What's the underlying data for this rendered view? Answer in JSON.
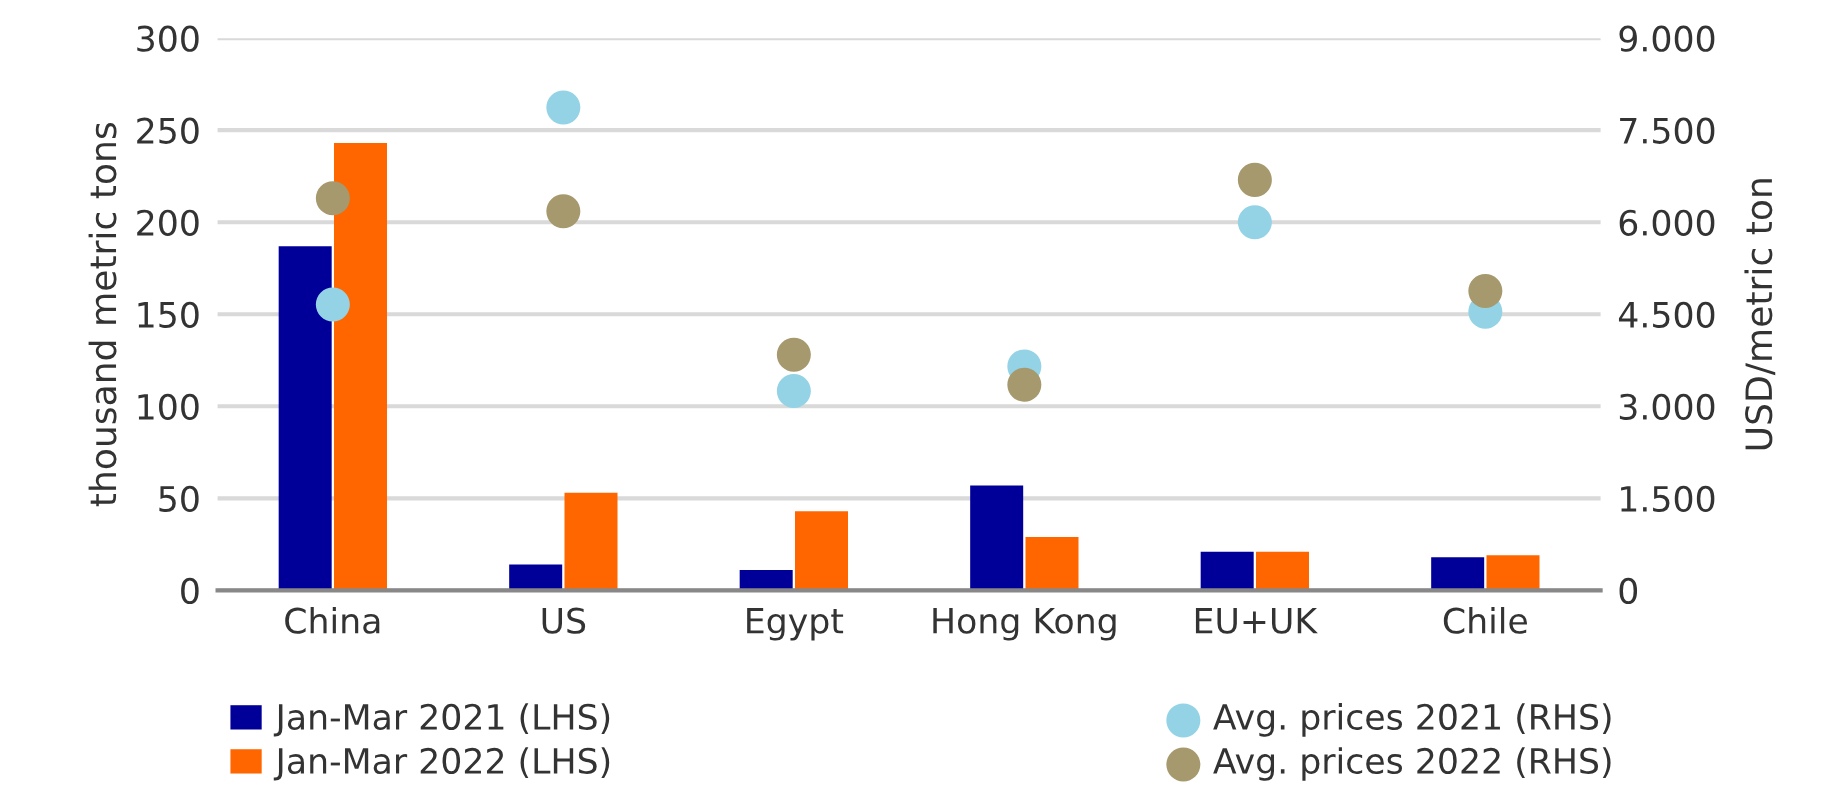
{
  "chart_data": {
    "type": "bar",
    "categories": [
      "China",
      "US",
      "Egypt",
      "Hong Kong",
      "EU+UK",
      "Chile"
    ],
    "ylabel": "thousand metric tons",
    "y2label": "USD/metric ton",
    "ylim": [
      0,
      300
    ],
    "yticks": [
      0,
      50,
      100,
      150,
      200,
      250,
      300
    ],
    "y2lim": [
      0,
      9000
    ],
    "y2ticks": [
      {
        "value": 0,
        "label": "0"
      },
      {
        "value": 1500,
        "label": "1.500"
      },
      {
        "value": 3000,
        "label": "3.000"
      },
      {
        "value": 4500,
        "label": "4.500"
      },
      {
        "value": 6000,
        "label": "6.000"
      },
      {
        "value": 7500,
        "label": "7.500"
      },
      {
        "value": 9000,
        "label": "9.000"
      }
    ],
    "grid": "y",
    "legend": "bottom",
    "series": [
      {
        "name": "Jan-Mar 2021 (LHS)",
        "color": "#000099",
        "values": [
          187,
          14,
          11,
          57,
          21,
          18
        ]
      },
      {
        "name": "Jan-Mar 2022 (LHS)",
        "color": "#ff6600",
        "values": [
          243,
          53,
          43,
          29,
          21,
          19
        ]
      },
      {
        "name": "Avg. prices 2021 (RHS)",
        "type": "scatter",
        "axis": "y2",
        "marker": "circle",
        "color": "#93d3e5",
        "values": [
          4660,
          7870,
          3250,
          3650,
          6000,
          4540
        ]
      },
      {
        "name": "Avg. prices 2022 (RHS)",
        "type": "scatter",
        "axis": "y2",
        "marker": "circle",
        "color": "#a6996d",
        "values": [
          6390,
          6180,
          3840,
          3350,
          6690,
          4880
        ]
      }
    ]
  }
}
